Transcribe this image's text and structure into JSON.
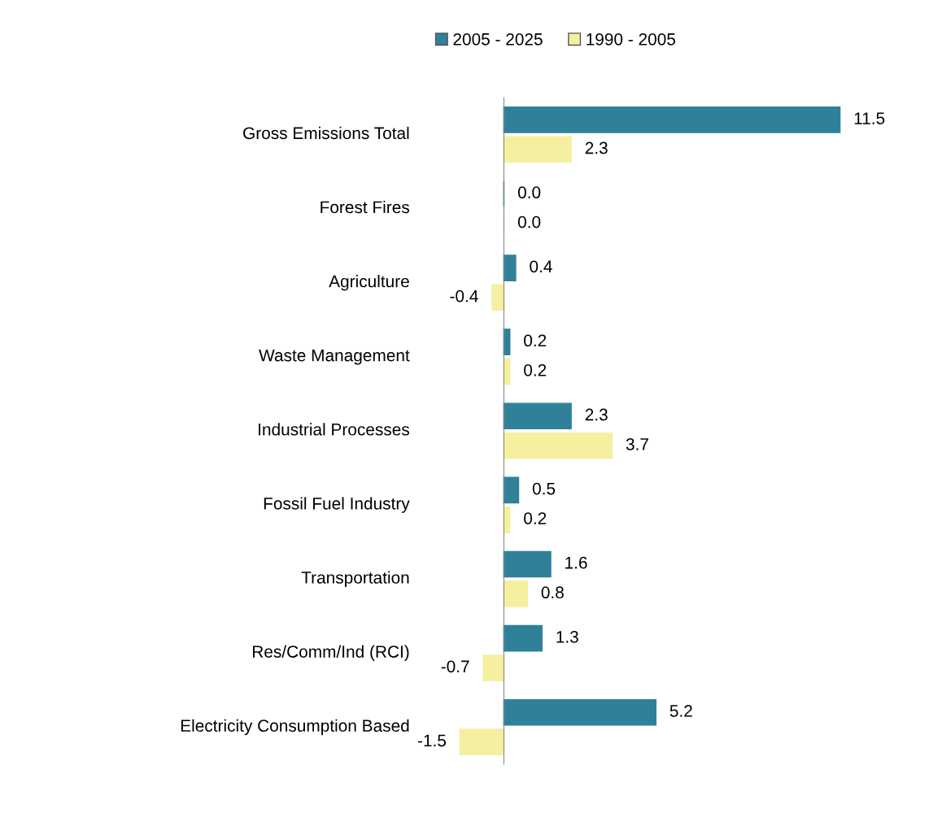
{
  "chart_data": {
    "type": "bar",
    "orientation": "horizontal",
    "categories": [
      "Gross Emissions Total",
      "Forest Fires",
      "Agriculture",
      "Waste Management",
      "Industrial Processes",
      "Fossil Fuel Industry",
      "Transportation",
      "Res/Comm/Ind (RCI)",
      "Electricity Consumption Based"
    ],
    "series": [
      {
        "name": "2005 - 2025",
        "color": "#2f8199",
        "values": [
          11.5,
          0.0,
          0.4,
          0.2,
          2.3,
          0.5,
          1.6,
          1.3,
          5.2
        ],
        "value_labels": [
          "11.5",
          "0.0",
          "0.4",
          "0.2",
          "2.3",
          "0.5",
          "1.6",
          "1.3",
          "5.2"
        ]
      },
      {
        "name": "1990 - 2005",
        "color": "#f4f0a0",
        "values": [
          2.3,
          0.0,
          -0.4,
          0.2,
          3.7,
          0.2,
          0.8,
          -0.7,
          -1.5
        ],
        "value_labels": [
          "2.3",
          "0.0",
          "-0.4",
          "0.2",
          "3.7",
          "0.2",
          "0.8",
          "-0.7",
          "-1.5"
        ]
      }
    ],
    "legend": "top",
    "grid": false,
    "tick_labels": "y"
  }
}
